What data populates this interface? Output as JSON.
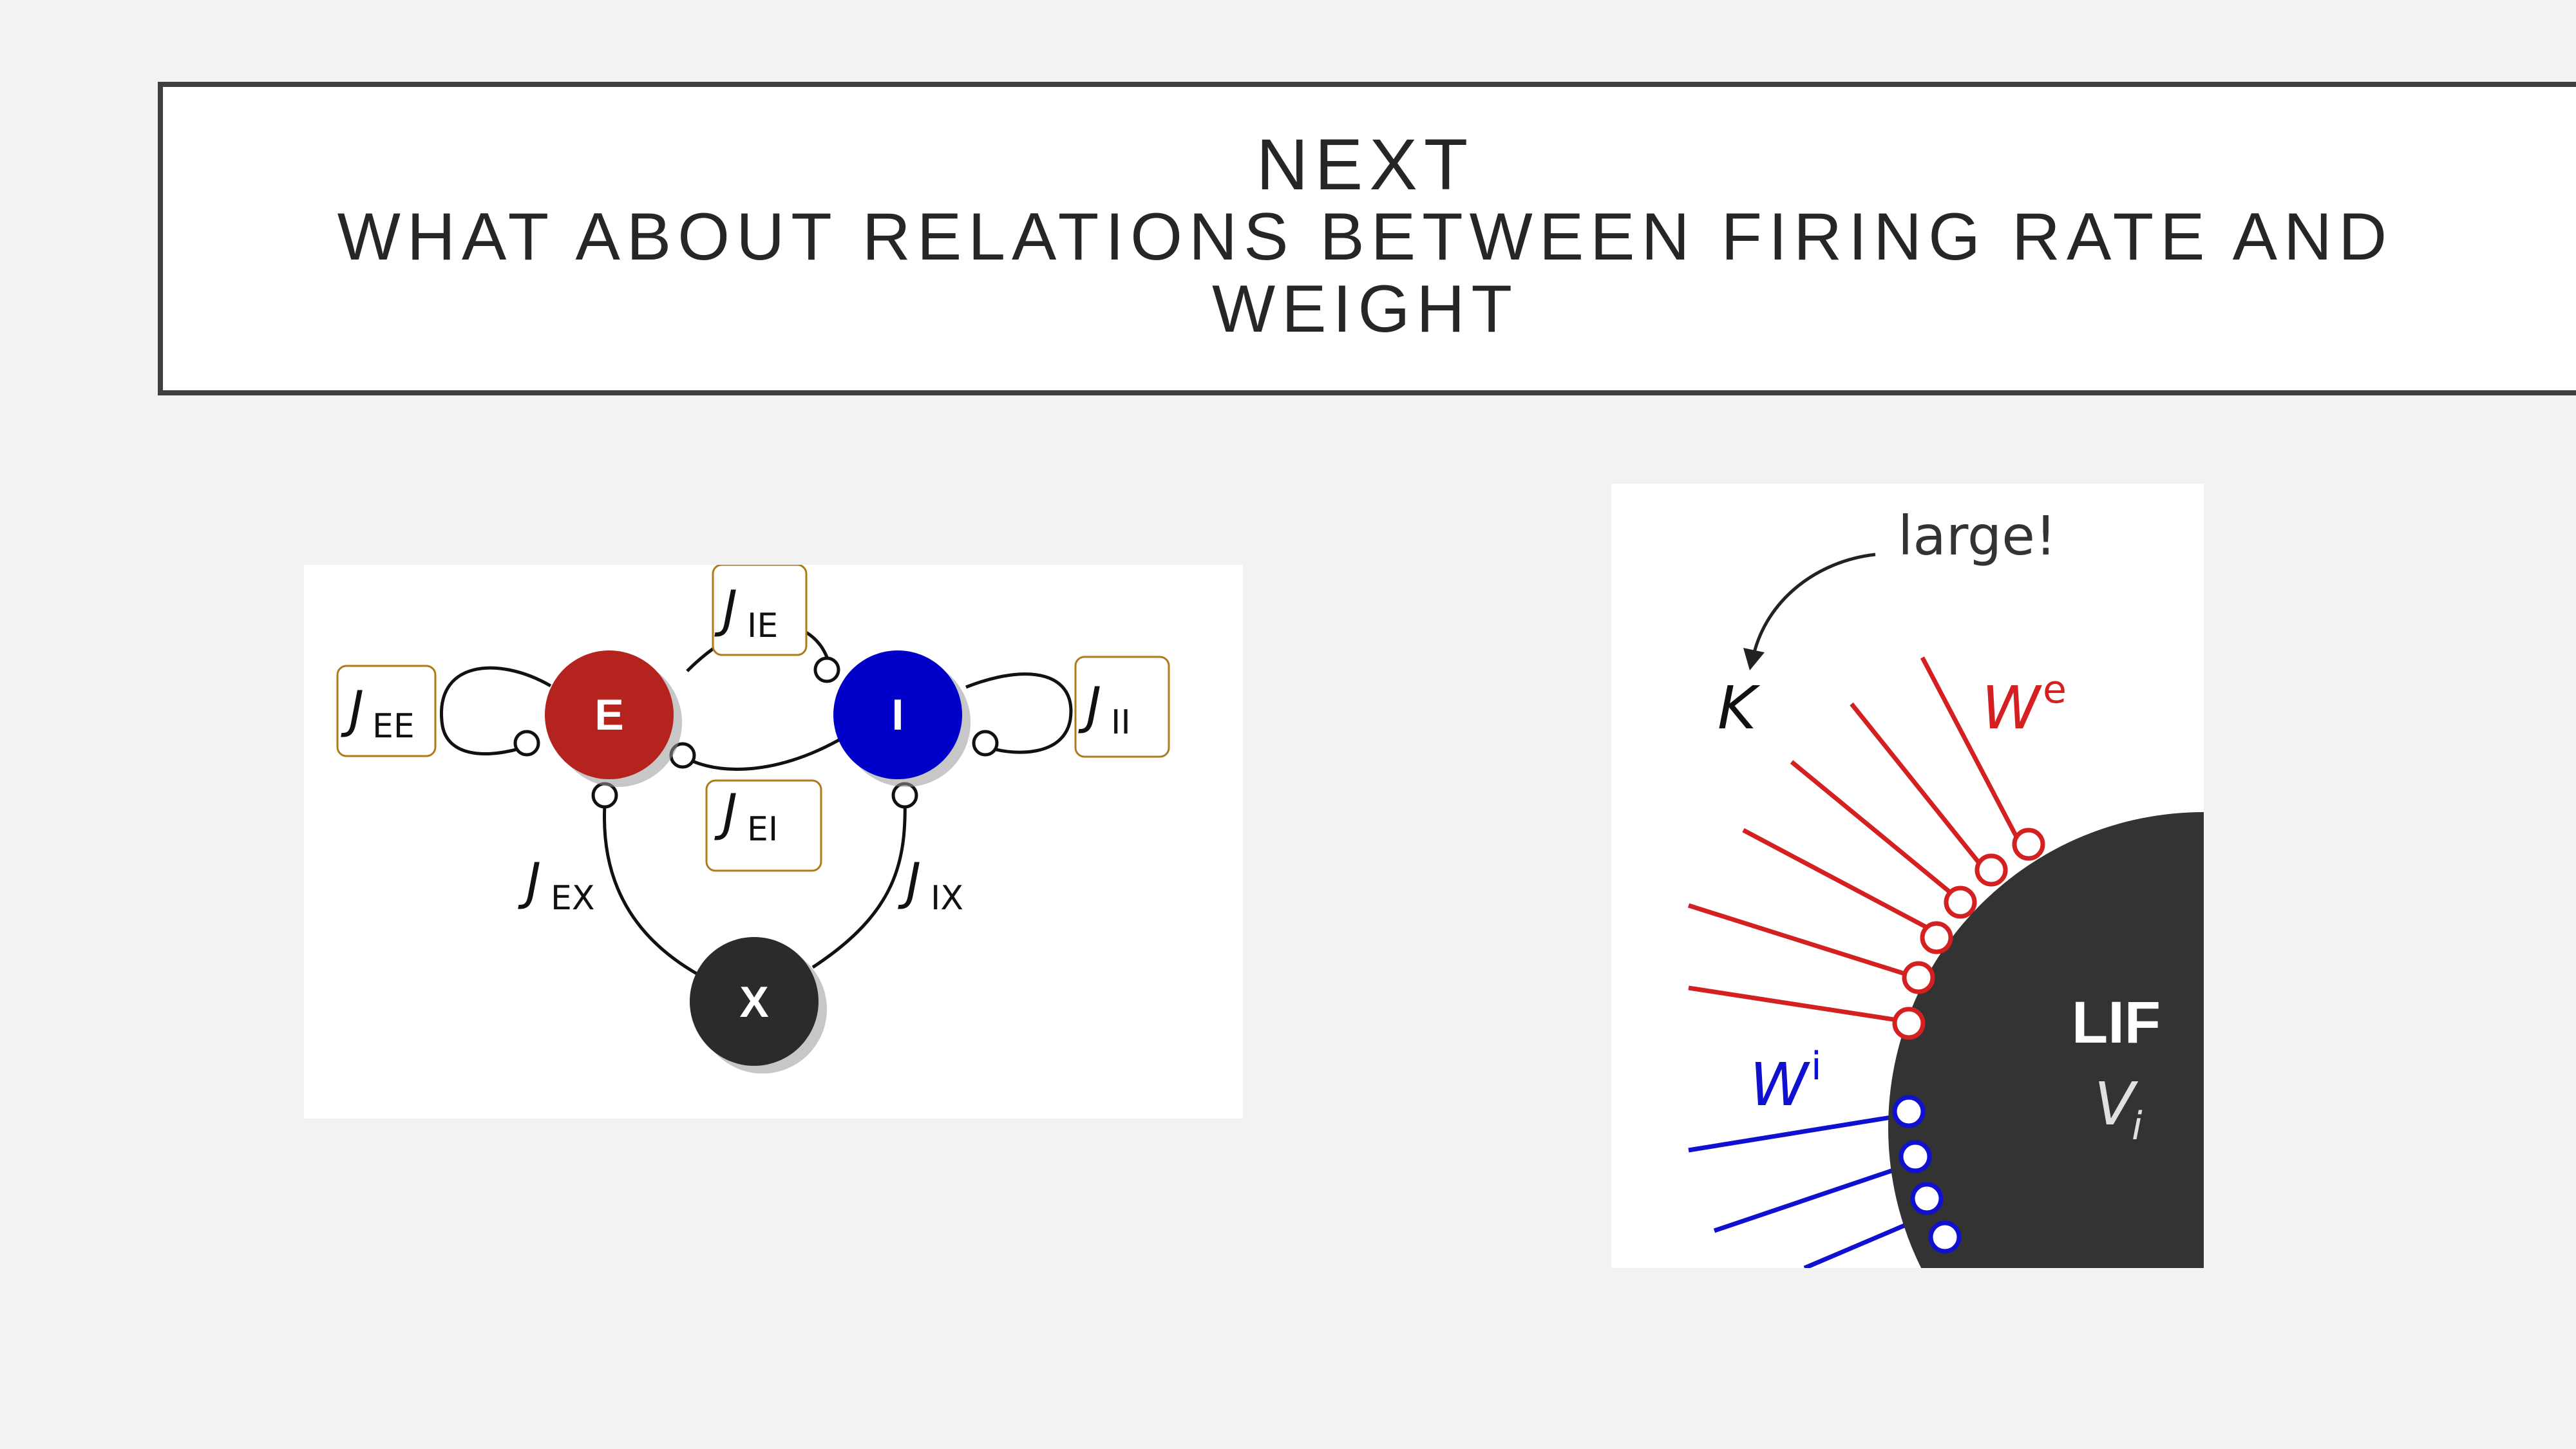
{
  "title": {
    "line1": "NEXT",
    "line2": "WHAT ABOUT RELATIONS BETWEEN FIRING RATE AND",
    "line3": "WEIGHT"
  },
  "left_diagram": {
    "nodes": {
      "e": "E",
      "i": "I",
      "x": "X"
    },
    "labels": {
      "jee_main": "J",
      "jee_sub": "EE",
      "jie_main": "J",
      "jie_sub": "IE",
      "jei_main": "J",
      "jei_sub": "EI",
      "jii_main": "J",
      "jii_sub": "II",
      "jex_main": "J",
      "jex_sub": "EX",
      "jix_main": "J",
      "jix_sub": "IX"
    },
    "colors": {
      "e": "#b5231f",
      "i": "#0000c8",
      "x": "#2b2b2b",
      "box": "#b07a1a"
    }
  },
  "right_diagram": {
    "large": "large!",
    "k": "K",
    "we_main": "W",
    "we_sup": "e",
    "wi_main": "W",
    "wi_sup": "i",
    "lif": "LIF",
    "vi_main": "V",
    "vi_sub": "i",
    "colors": {
      "excitatory": "#d42020",
      "inhibitory": "#1010d0",
      "soma": "#333333"
    }
  }
}
